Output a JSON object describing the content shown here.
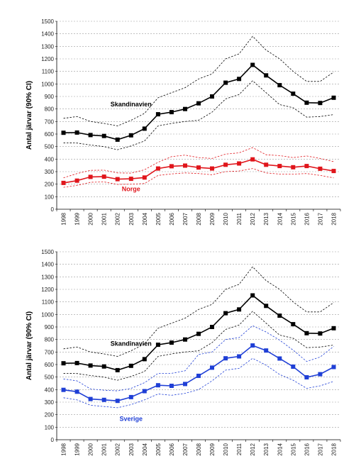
{
  "chart_data": [
    {
      "type": "line",
      "ylabel": "Antal järvar (90% CI)",
      "ylim": [
        0,
        1500
      ],
      "yticks": [
        0,
        100,
        200,
        300,
        400,
        500,
        600,
        700,
        800,
        900,
        1000,
        1100,
        1200,
        1300,
        1400,
        1500
      ],
      "grid": "horizontal dashed",
      "x": [
        "1998",
        "1999",
        "2000",
        "2001",
        "2002",
        "2003",
        "2004",
        "2005",
        "2006",
        "2007",
        "2008",
        "2009",
        "2010",
        "2011",
        "2012",
        "2013",
        "2014",
        "2015",
        "2016",
        "2017",
        "2018"
      ],
      "series": [
        {
          "name": "Skandinavien",
          "color": "#000000",
          "label_at": [
            2003,
            820
          ],
          "values": [
            610,
            612,
            592,
            585,
            555,
            590,
            643,
            758,
            775,
            800,
            845,
            900,
            1010,
            1040,
            1152,
            1068,
            990,
            922,
            850,
            848,
            890
          ],
          "ci_upper": [
            725,
            740,
            700,
            685,
            665,
            710,
            765,
            890,
            930,
            970,
            1040,
            1080,
            1200,
            1240,
            1380,
            1270,
            1200,
            1100,
            1020,
            1020,
            1095
          ],
          "ci_lower": [
            530,
            528,
            512,
            500,
            475,
            505,
            545,
            665,
            685,
            700,
            710,
            775,
            880,
            915,
            1025,
            930,
            835,
            810,
            735,
            740,
            755
          ]
        },
        {
          "name": "Norge",
          "color": "#e0151b",
          "label_at": [
            2003,
            145
          ],
          "values": [
            210,
            228,
            258,
            260,
            240,
            243,
            253,
            325,
            343,
            348,
            333,
            325,
            355,
            365,
            398,
            355,
            345,
            335,
            345,
            323,
            305
          ],
          "ci_upper": [
            250,
            285,
            310,
            312,
            290,
            288,
            315,
            375,
            420,
            432,
            412,
            405,
            440,
            450,
            492,
            435,
            428,
            412,
            425,
            405,
            380
          ],
          "ci_lower": [
            175,
            190,
            215,
            218,
            198,
            200,
            205,
            270,
            282,
            290,
            285,
            275,
            300,
            305,
            325,
            290,
            280,
            280,
            285,
            270,
            250
          ]
        }
      ]
    },
    {
      "type": "line",
      "ylabel": "Antal järvar (90% CI)",
      "ylim": [
        0,
        1500
      ],
      "yticks": [
        0,
        100,
        200,
        300,
        400,
        500,
        600,
        700,
        800,
        900,
        1000,
        1100,
        1200,
        1300,
        1400,
        1500
      ],
      "grid": "horizontal dashed",
      "x": [
        "1998",
        "1999",
        "2000",
        "2001",
        "2002",
        "2003",
        "2004",
        "2005",
        "2006",
        "2007",
        "2008",
        "2009",
        "2010",
        "2011",
        "2012",
        "2013",
        "2014",
        "2015",
        "2016",
        "2017",
        "2018"
      ],
      "series": [
        {
          "name": "Skandinavien",
          "color": "#000000",
          "label_at": [
            2003,
            750
          ],
          "values": [
            610,
            612,
            592,
            585,
            555,
            590,
            643,
            758,
            775,
            800,
            845,
            900,
            1010,
            1040,
            1152,
            1068,
            990,
            922,
            850,
            848,
            890
          ],
          "ci_upper": [
            725,
            740,
            700,
            685,
            665,
            710,
            765,
            890,
            930,
            970,
            1040,
            1080,
            1200,
            1240,
            1380,
            1270,
            1200,
            1100,
            1020,
            1020,
            1095
          ],
          "ci_lower": [
            530,
            528,
            512,
            500,
            475,
            505,
            545,
            665,
            685,
            700,
            710,
            775,
            880,
            915,
            1025,
            930,
            835,
            810,
            735,
            740,
            755
          ]
        },
        {
          "name": "Sverige",
          "color": "#1f3fd6",
          "label_at": [
            2003,
            150
          ],
          "values": [
            398,
            383,
            325,
            318,
            310,
            340,
            388,
            435,
            430,
            445,
            510,
            575,
            650,
            665,
            752,
            712,
            648,
            583,
            498,
            523,
            580
          ],
          "ci_upper": [
            485,
            470,
            405,
            395,
            390,
            410,
            455,
            530,
            530,
            550,
            680,
            700,
            800,
            815,
            910,
            860,
            795,
            715,
            625,
            660,
            745
          ],
          "ci_lower": [
            335,
            318,
            275,
            265,
            255,
            280,
            318,
            365,
            355,
            370,
            400,
            470,
            555,
            570,
            650,
            595,
            520,
            475,
            410,
            430,
            465
          ]
        }
      ]
    }
  ]
}
